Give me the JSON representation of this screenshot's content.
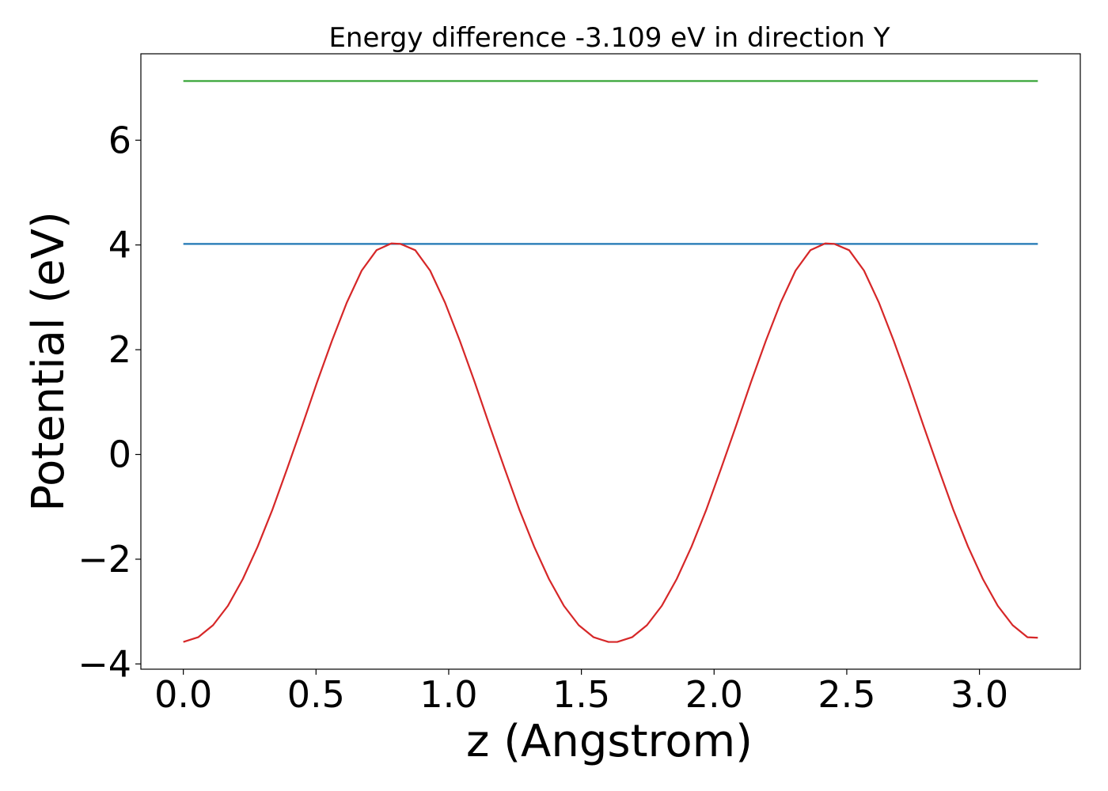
{
  "chart_data": {
    "type": "line",
    "title": "Energy difference -3.109 eV in direction Y",
    "xlabel": "z (Angstrom)",
    "ylabel": "Potential (eV)",
    "xlim": [
      -0.16,
      3.38
    ],
    "ylim": [
      -4.1,
      7.65
    ],
    "xticks": [
      0.0,
      0.5,
      1.0,
      1.5,
      2.0,
      2.5,
      3.0
    ],
    "xtick_labels": [
      "0.0",
      "0.5",
      "1.0",
      "1.5",
      "2.0",
      "2.5",
      "3.0"
    ],
    "yticks": [
      -4,
      -2,
      0,
      2,
      4,
      6
    ],
    "ytick_labels": [
      "−4",
      "−2",
      "0",
      "2",
      "4",
      "6"
    ],
    "grid": false,
    "series": [
      {
        "color": "#1f77b4",
        "x": [
          0.0,
          3.22
        ],
        "y": [
          4.02,
          4.02
        ]
      },
      {
        "color": "#2ca02c",
        "x": [
          0.0,
          3.22
        ],
        "y": [
          7.13,
          7.13
        ]
      },
      {
        "color": "#d62728",
        "x": [
          0.0,
          0.056,
          0.112,
          0.168,
          0.224,
          0.28,
          0.336,
          0.392,
          0.448,
          0.504,
          0.56,
          0.616,
          0.672,
          0.728,
          0.784,
          0.818,
          0.874,
          0.93,
          0.986,
          1.042,
          1.098,
          1.154,
          1.21,
          1.266,
          1.322,
          1.378,
          1.434,
          1.49,
          1.546,
          1.602,
          1.635,
          1.691,
          1.747,
          1.803,
          1.859,
          1.915,
          1.971,
          2.027,
          2.083,
          2.139,
          2.195,
          2.251,
          2.307,
          2.363,
          2.419,
          2.453,
          2.509,
          2.565,
          2.621,
          2.677,
          2.733,
          2.789,
          2.845,
          2.901,
          2.957,
          3.013,
          3.069,
          3.125,
          3.181,
          3.22
        ],
        "y": [
          -3.58,
          -3.49,
          -3.26,
          -2.89,
          -2.38,
          -1.76,
          -1.05,
          -0.26,
          0.55,
          1.38,
          2.17,
          2.9,
          3.51,
          3.9,
          4.03,
          4.02,
          3.9,
          3.51,
          2.9,
          2.17,
          1.38,
          0.55,
          -0.26,
          -1.05,
          -1.76,
          -2.38,
          -2.89,
          -3.26,
          -3.49,
          -3.58,
          -3.58,
          -3.49,
          -3.26,
          -2.89,
          -2.38,
          -1.76,
          -1.05,
          -0.26,
          0.55,
          1.38,
          2.17,
          2.9,
          3.51,
          3.9,
          4.03,
          4.02,
          3.9,
          3.51,
          2.9,
          2.17,
          1.38,
          0.55,
          -0.26,
          -1.05,
          -1.76,
          -2.38,
          -2.89,
          -3.26,
          -3.49,
          -3.5
        ]
      }
    ]
  }
}
